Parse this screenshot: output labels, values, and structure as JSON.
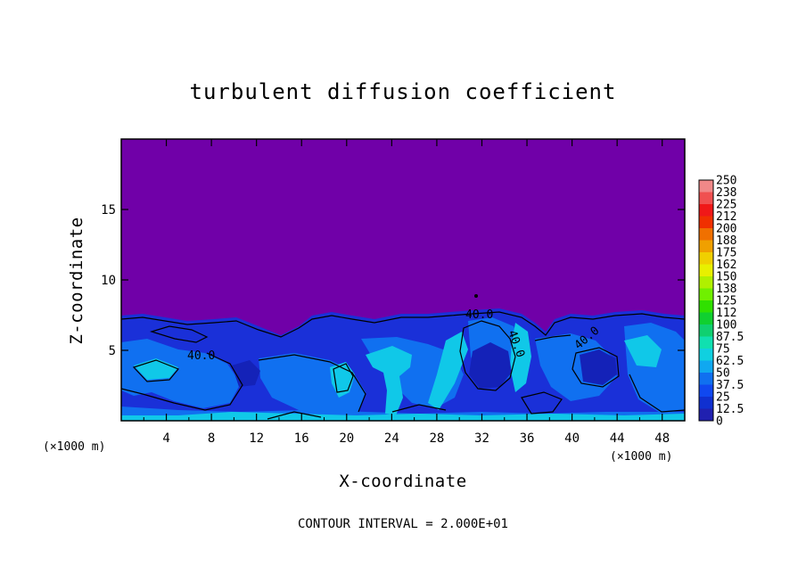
{
  "chart_data": {
    "type": "heatmap",
    "title": "turbulent diffusion coefficient",
    "xlabel": "X-coordinate",
    "ylabel": "Z-coordinate",
    "x_unit": "(×1000 m)",
    "xlim": [
      0,
      50
    ],
    "ylim": [
      0,
      20
    ],
    "x_ticks": [
      4,
      8,
      12,
      16,
      20,
      24,
      28,
      32,
      36,
      40,
      44,
      48
    ],
    "y_ticks": [
      5,
      10,
      15
    ],
    "colorbar": {
      "labels": [
        "250",
        "238",
        "225",
        "212",
        "200",
        "188",
        "175",
        "162",
        "150",
        "138",
        "125",
        "112",
        "100",
        "87.5",
        "75",
        "62.5",
        "50",
        "37.5",
        "25",
        "12.5",
        "0"
      ],
      "colors": [
        "#f08888",
        "#f05050",
        "#f01818",
        "#f03000",
        "#f07000",
        "#f0a000",
        "#f0d000",
        "#e8f000",
        "#b0f000",
        "#70f000",
        "#30e000",
        "#10d030",
        "#10d070",
        "#10e0b0",
        "#10d0e0",
        "#10a8f0",
        "#1070f0",
        "#1048f0",
        "#1030d0",
        "#2020b0",
        "#7000a8"
      ]
    },
    "contour_labels": [
      "40.0",
      "40.0",
      "40.0",
      "40.0"
    ],
    "contour_interval_text": "CONTOUR INTERVAL = 2.000E+01",
    "boundary_layer_top_z": 7.5,
    "colors": {
      "background_field": "#7000a8",
      "low_field": "#1a30d8",
      "mid_field": "#1070f0",
      "high_field": "#10c8e8",
      "contour": "#000000"
    }
  }
}
